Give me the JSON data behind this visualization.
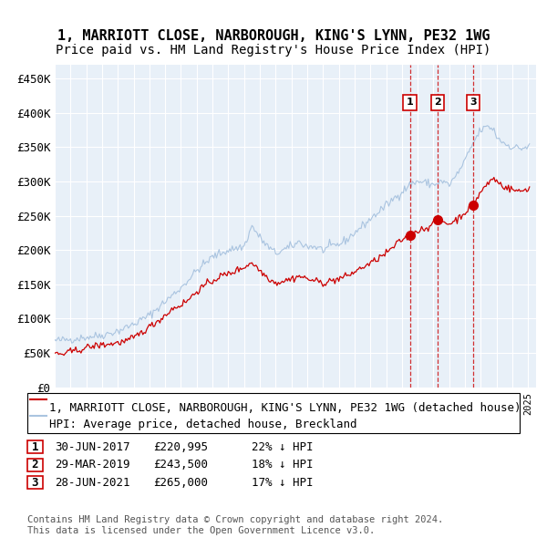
{
  "title": "1, MARRIOTT CLOSE, NARBOROUGH, KING'S LYNN, PE32 1WG",
  "subtitle": "Price paid vs. HM Land Registry's House Price Index (HPI)",
  "xlim": [
    1995.0,
    2025.5
  ],
  "ylim": [
    0,
    470000
  ],
  "yticks": [
    0,
    50000,
    100000,
    150000,
    200000,
    250000,
    300000,
    350000,
    400000,
    450000
  ],
  "ytick_labels": [
    "£0",
    "£50K",
    "£100K",
    "£150K",
    "£200K",
    "£250K",
    "£300K",
    "£350K",
    "£400K",
    "£450K"
  ],
  "hpi_color": "#aac4e0",
  "price_color": "#cc0000",
  "sale_marker_color": "#cc0000",
  "vline_color": "#cc0000",
  "background_color": "#e8f0f8",
  "grid_color": "#ffffff",
  "sale_dates": [
    2017.5,
    2019.25,
    2021.5
  ],
  "sale_prices": [
    220995,
    243500,
    265000
  ],
  "sale_labels": [
    "1",
    "2",
    "3"
  ],
  "legend_address": "1, MARRIOTT CLOSE, NARBOROUGH, KING'S LYNN, PE32 1WG (detached house)",
  "legend_hpi": "HPI: Average price, detached house, Breckland",
  "table_rows": [
    [
      "1",
      "30-JUN-2017",
      "£220,995",
      "22% ↓ HPI"
    ],
    [
      "2",
      "29-MAR-2019",
      "£243,500",
      "18% ↓ HPI"
    ],
    [
      "3",
      "28-JUN-2021",
      "£265,000",
      "17% ↓ HPI"
    ]
  ],
  "footer": "Contains HM Land Registry data © Crown copyright and database right 2024.\nThis data is licensed under the Open Government Licence v3.0.",
  "title_fontsize": 11,
  "subtitle_fontsize": 10,
  "axis_fontsize": 9,
  "legend_fontsize": 9,
  "table_fontsize": 9,
  "footer_fontsize": 7.5
}
